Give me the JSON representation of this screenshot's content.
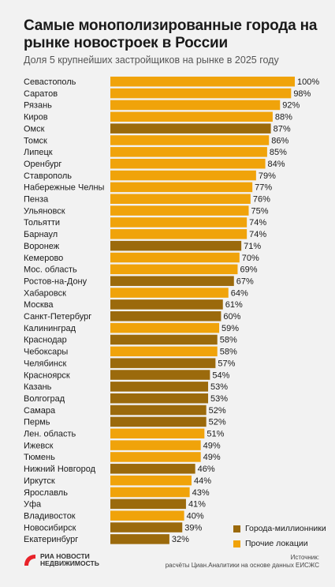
{
  "header": {
    "title": "Самые монополизированные города на рынке новостроек в России",
    "subtitle": "Доля 5 крупнейших застройщиков на рынке в 2025 году"
  },
  "colors": {
    "million_city": "#9b6a0c",
    "other": "#f0a30a"
  },
  "chart_data": {
    "type": "bar",
    "orientation": "horizontal",
    "unit": "%",
    "xlim": [
      0,
      100
    ],
    "grid": false,
    "legend_placement": "bottom-right",
    "legend": [
      {
        "label": "Города-миллионники",
        "group": "million",
        "color": "#9b6a0c"
      },
      {
        "label": "Прочие локации",
        "group": "other",
        "color": "#f0a30a"
      }
    ],
    "categories": [
      "Севастополь",
      "Саратов",
      "Рязань",
      "Киров",
      "Омск",
      "Томск",
      "Липецк",
      "Оренбург",
      "Ставрополь",
      "Набережные Челны",
      "Пенза",
      "Ульяновск",
      "Тольятти",
      "Барнаул",
      "Воронеж",
      "Кемерово",
      "Мос. область",
      "Ростов-на-Дону",
      "Хабаровск",
      "Москва",
      "Санкт-Петербург",
      "Калининград",
      "Краснодар",
      "Чебоксары",
      "Челябинск",
      "Красноярск",
      "Казань",
      "Волгоград",
      "Самара",
      "Пермь",
      "Лен. область",
      "Ижевск",
      "Тюмень",
      "Нижний Новгород",
      "Иркутск",
      "Ярославль",
      "Уфа",
      "Владивосток",
      "Новосибирск",
      "Екатеринбург"
    ],
    "values": [
      100,
      98,
      92,
      88,
      87,
      86,
      85,
      84,
      79,
      77,
      76,
      75,
      74,
      74,
      71,
      70,
      69,
      67,
      64,
      61,
      60,
      59,
      58,
      58,
      57,
      54,
      53,
      53,
      52,
      52,
      51,
      49,
      49,
      46,
      44,
      43,
      41,
      40,
      39,
      32
    ],
    "groups": [
      "other",
      "other",
      "other",
      "other",
      "million",
      "other",
      "other",
      "other",
      "other",
      "other",
      "other",
      "other",
      "other",
      "other",
      "million",
      "other",
      "other",
      "million",
      "other",
      "million",
      "million",
      "other",
      "million",
      "other",
      "million",
      "million",
      "million",
      "million",
      "million",
      "million",
      "other",
      "other",
      "other",
      "million",
      "other",
      "other",
      "million",
      "other",
      "million",
      "million"
    ],
    "value_labels": [
      "100%",
      "98%",
      "92%",
      "88%",
      "87%",
      "86%",
      "85%",
      "84%",
      "79%",
      "77%",
      "76%",
      "75%",
      "74%",
      "74%",
      "71%",
      "70%",
      "69%",
      "67%",
      "64%",
      "61%",
      "60%",
      "59%",
      "58%",
      "58%",
      "57%",
      "54%",
      "53%",
      "53%",
      "52%",
      "52%",
      "51%",
      "49%",
      "49%",
      "46%",
      "44%",
      "43%",
      "41%",
      "40%",
      "39%",
      "32%"
    ]
  },
  "footer": {
    "logo_line1": "РИА НОВОСТИ",
    "logo_line2": "НЕДВИЖИМОСТЬ",
    "source_label": "Источник:",
    "source_text": "расчёты Циан.Аналитики на основе данных ЕИСЖС"
  }
}
